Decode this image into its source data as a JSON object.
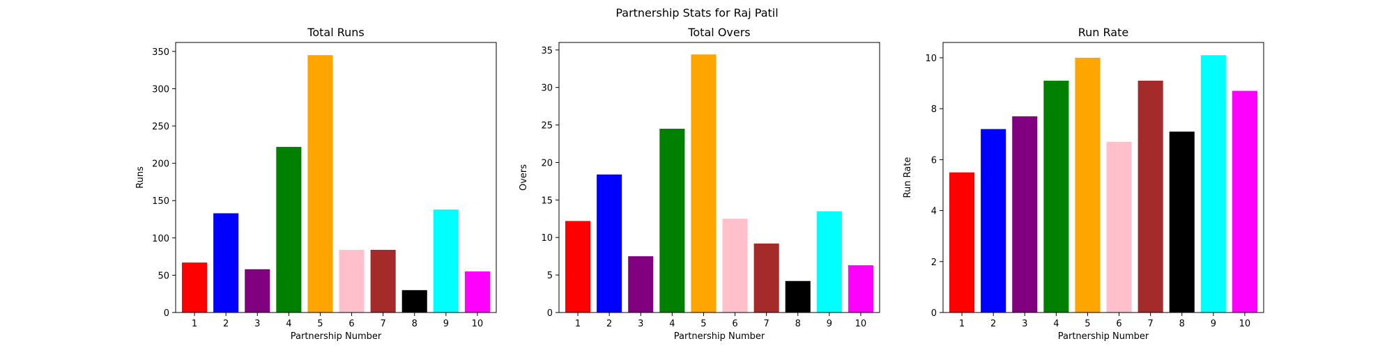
{
  "figure": {
    "suptitle": "Partnership Stats for Raj Patil"
  },
  "chart_data": [
    {
      "type": "bar",
      "title": "Total Runs",
      "xlabel": "Partnership Number",
      "ylabel": "Runs",
      "categories": [
        "1",
        "2",
        "3",
        "4",
        "5",
        "6",
        "7",
        "8",
        "9",
        "10"
      ],
      "values": [
        67,
        133,
        58,
        222,
        345,
        84,
        84,
        30,
        138,
        55
      ],
      "colors": [
        "#ff0000",
        "#0000ff",
        "#800080",
        "#008000",
        "#ffa500",
        "#ffc0cb",
        "#a52a2a",
        "#000000",
        "#00ffff",
        "#ff00ff"
      ],
      "ylim": [
        0,
        362
      ],
      "yticks": [
        0,
        50,
        100,
        150,
        200,
        250,
        300,
        350
      ],
      "ytick_labels": [
        "0",
        "50",
        "100",
        "150",
        "200",
        "250",
        "300",
        "350"
      ],
      "grid": false,
      "legend": "none"
    },
    {
      "type": "bar",
      "title": "Total Overs",
      "xlabel": "Partnership Number",
      "ylabel": "Overs",
      "categories": [
        "1",
        "2",
        "3",
        "4",
        "5",
        "6",
        "7",
        "8",
        "9",
        "10"
      ],
      "values": [
        12.2,
        18.4,
        7.5,
        24.5,
        34.4,
        12.5,
        9.2,
        4.2,
        13.5,
        6.3
      ],
      "colors": [
        "#ff0000",
        "#0000ff",
        "#800080",
        "#008000",
        "#ffa500",
        "#ffc0cb",
        "#a52a2a",
        "#000000",
        "#00ffff",
        "#ff00ff"
      ],
      "ylim": [
        0,
        36
      ],
      "yticks": [
        0,
        5,
        10,
        15,
        20,
        25,
        30,
        35
      ],
      "ytick_labels": [
        "0",
        "5",
        "10",
        "15",
        "20",
        "25",
        "30",
        "35"
      ],
      "grid": false,
      "legend": "none"
    },
    {
      "type": "bar",
      "title": "Run Rate",
      "xlabel": "Partnership Number",
      "ylabel": "Run Rate",
      "categories": [
        "1",
        "2",
        "3",
        "4",
        "5",
        "6",
        "7",
        "8",
        "9",
        "10"
      ],
      "values": [
        5.5,
        7.2,
        7.7,
        9.1,
        10.0,
        6.7,
        9.1,
        7.1,
        10.1,
        8.7
      ],
      "colors": [
        "#ff0000",
        "#0000ff",
        "#800080",
        "#008000",
        "#ffa500",
        "#ffc0cb",
        "#a52a2a",
        "#000000",
        "#00ffff",
        "#ff00ff"
      ],
      "ylim": [
        0,
        10.6
      ],
      "yticks": [
        0,
        2,
        4,
        6,
        8,
        10
      ],
      "ytick_labels": [
        "0",
        "2",
        "4",
        "6",
        "8",
        "10"
      ],
      "grid": false,
      "legend": "none"
    }
  ]
}
